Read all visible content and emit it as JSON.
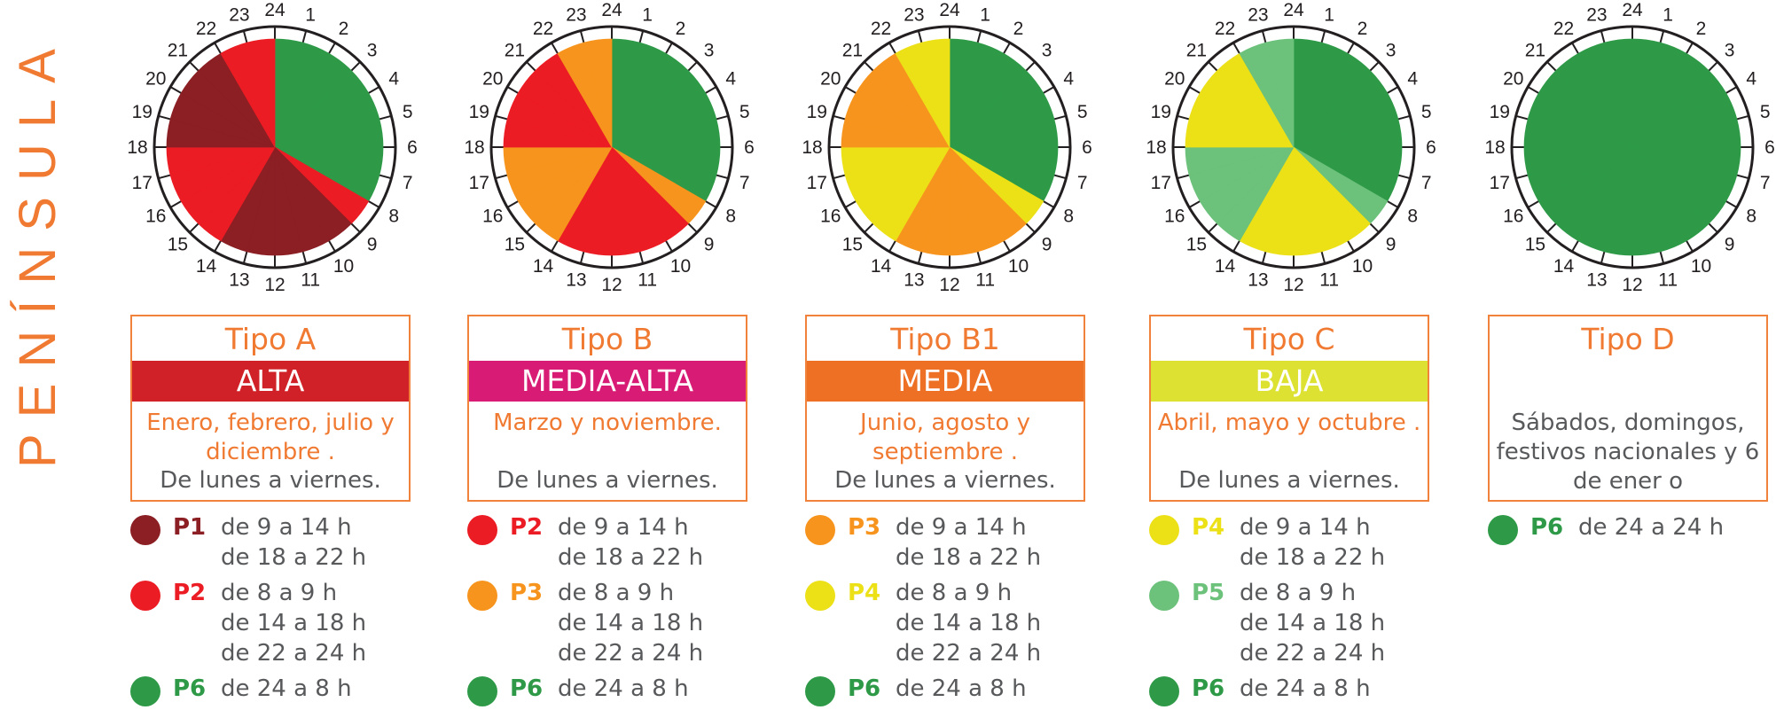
{
  "region_title": "PENÍNSULA",
  "colors": {
    "P1": "#8b1f24",
    "P2": "#ec1c24",
    "P3": "#f7941d",
    "P4": "#ece017",
    "P5": "#6cc17b",
    "P6": "#2e9a48",
    "orange_text": "#f07a32",
    "gray_text": "#58595b"
  },
  "hour_labels": [
    "24",
    "1",
    "2",
    "3",
    "4",
    "5",
    "6",
    "7",
    "8",
    "9",
    "10",
    "11",
    "12",
    "13",
    "14",
    "15",
    "16",
    "17",
    "18",
    "19",
    "20",
    "21",
    "22",
    "23"
  ],
  "types": [
    {
      "tipo": "Tipo A",
      "season": "ALTA",
      "band_color": "#cf2127",
      "months": "Enero, febrero, julio y diciembre .",
      "days": "De lunes a viernes.",
      "hours": [
        "P6",
        "P6",
        "P6",
        "P6",
        "P6",
        "P6",
        "P6",
        "P6",
        "P2",
        "P1",
        "P1",
        "P1",
        "P1",
        "P1",
        "P2",
        "P2",
        "P2",
        "P2",
        "P1",
        "P1",
        "P1",
        "P1",
        "P2",
        "P2"
      ],
      "legend": [
        {
          "code": "P1",
          "ranges": [
            "de 9 a 14 h",
            "de 18 a 22  h"
          ]
        },
        {
          "code": "P2",
          "ranges": [
            "de 8 a 9  h",
            "de 14 a 18 h",
            "de 22 a 24  h"
          ]
        },
        {
          "code": "P6",
          "ranges": [
            "de 24 a 8  h"
          ]
        }
      ]
    },
    {
      "tipo": "Tipo B",
      "season": "MEDIA-ALTA",
      "band_color": "#d81b74",
      "months": "Marzo y noviembre.",
      "days": "De lunes a viernes.",
      "hours": [
        "P6",
        "P6",
        "P6",
        "P6",
        "P6",
        "P6",
        "P6",
        "P6",
        "P3",
        "P2",
        "P2",
        "P2",
        "P2",
        "P2",
        "P3",
        "P3",
        "P3",
        "P3",
        "P2",
        "P2",
        "P2",
        "P2",
        "P3",
        "P3"
      ],
      "legend": [
        {
          "code": "P2",
          "ranges": [
            "de 9 a 14 h",
            "de 18 a 22  h"
          ]
        },
        {
          "code": "P3",
          "ranges": [
            "de 8 a 9  h",
            "de 14 a 18 h",
            "de 22 a 24  h"
          ]
        },
        {
          "code": "P6",
          "ranges": [
            "de 24 a 8  h"
          ]
        }
      ]
    },
    {
      "tipo": "Tipo B1",
      "season": "MEDIA",
      "band_color": "#ee7025",
      "months": "Junio, agosto y septiembre .",
      "days": "De lunes a viernes.",
      "hours": [
        "P6",
        "P6",
        "P6",
        "P6",
        "P6",
        "P6",
        "P6",
        "P6",
        "P4",
        "P3",
        "P3",
        "P3",
        "P3",
        "P3",
        "P4",
        "P4",
        "P4",
        "P4",
        "P3",
        "P3",
        "P3",
        "P3",
        "P4",
        "P4"
      ],
      "legend": [
        {
          "code": "P3",
          "ranges": [
            "de 9 a 14 h",
            "de 18 a 22  h"
          ]
        },
        {
          "code": "P4",
          "ranges": [
            "de 8 a 9  h",
            "de 14 a 18 h",
            "de 22 a 24  h"
          ]
        },
        {
          "code": "P6",
          "ranges": [
            "de 24 a 8  h"
          ]
        }
      ]
    },
    {
      "tipo": "Tipo C",
      "season": "BAJA",
      "band_color": "#dde232",
      "months": "Abril, mayo y octubre  .",
      "days": "De lunes a viernes.",
      "hours": [
        "P6",
        "P6",
        "P6",
        "P6",
        "P6",
        "P6",
        "P6",
        "P6",
        "P5",
        "P4",
        "P4",
        "P4",
        "P4",
        "P4",
        "P5",
        "P5",
        "P5",
        "P5",
        "P4",
        "P4",
        "P4",
        "P4",
        "P5",
        "P5"
      ],
      "legend": [
        {
          "code": "P4",
          "ranges": [
            "de 9 a 14 h",
            "de 18 a 22  h"
          ]
        },
        {
          "code": "P5",
          "ranges": [
            "de 8 a 9  h",
            "de 14 a 18 h",
            "de 22 a 24  h"
          ]
        },
        {
          "code": "P6",
          "ranges": [
            "de 24 a 8  h"
          ]
        }
      ]
    },
    {
      "tipo": "Tipo D",
      "season": "",
      "band_color": "",
      "months": "",
      "days": "Sábados, domingos, festivos nacionales  y 6 de ener o",
      "hours": [
        "P6",
        "P6",
        "P6",
        "P6",
        "P6",
        "P6",
        "P6",
        "P6",
        "P6",
        "P6",
        "P6",
        "P6",
        "P6",
        "P6",
        "P6",
        "P6",
        "P6",
        "P6",
        "P6",
        "P6",
        "P6",
        "P6",
        "P6",
        "P6"
      ],
      "legend": [
        {
          "code": "P6",
          "ranges": [
            "de 24 a 24  h"
          ]
        }
      ]
    }
  ]
}
